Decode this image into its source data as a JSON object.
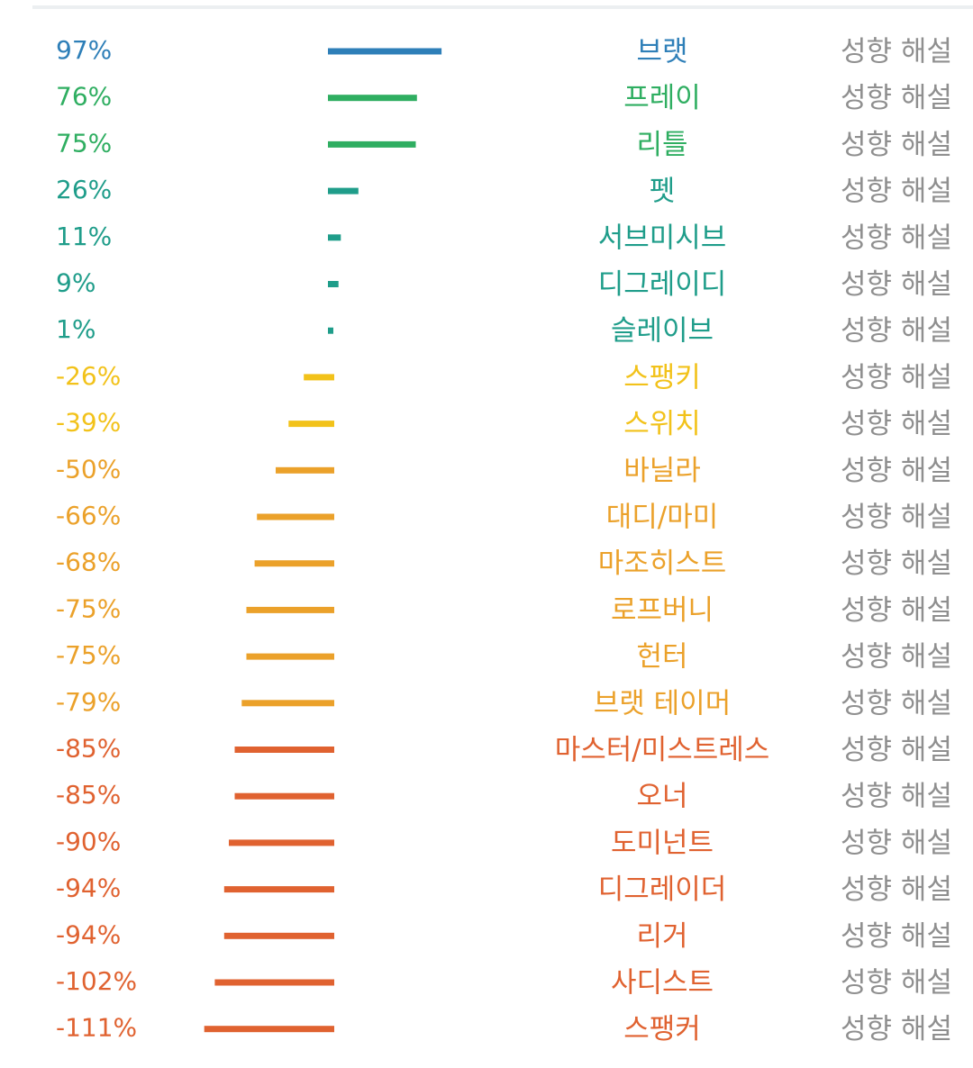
{
  "chart_data": {
    "type": "bar",
    "orientation": "horizontal",
    "categories": [
      "브랫",
      "프레이",
      "리틀",
      "펫",
      "서브미시브",
      "디그레이디",
      "슬레이브",
      "스팽키",
      "스위치",
      "바닐라",
      "대디/마미",
      "마조히스트",
      "로프버니",
      "헌터",
      "브랫 테이머",
      "마스터/미스트레스",
      "오너",
      "도미넌트",
      "디그레이더",
      "리거",
      "사디스트",
      "스팽커"
    ],
    "values": [
      97,
      76,
      75,
      26,
      11,
      9,
      1,
      -26,
      -39,
      -50,
      -66,
      -68,
      -75,
      -75,
      -79,
      -85,
      -85,
      -90,
      -94,
      -94,
      -102,
      -111
    ],
    "value_labels": [
      "97%",
      "76%",
      "75%",
      "26%",
      "11%",
      "9%",
      "1%",
      "-26%",
      "-39%",
      "-50%",
      "-66%",
      "-68%",
      "-75%",
      "-75%",
      "-79%",
      "-85%",
      "-85%",
      "-90%",
      "-94%",
      "-94%",
      "-102%",
      "-111%"
    ],
    "colors": [
      "#2e7fb8",
      "#2fae61",
      "#2fae61",
      "#1f9d8a",
      "#1f9d8a",
      "#1f9d8a",
      "#1f9d8a",
      "#f2c21a",
      "#f2c21a",
      "#eba12a",
      "#eba12a",
      "#eba12a",
      "#eba12a",
      "#eba12a",
      "#eba12a",
      "#e06230",
      "#e06230",
      "#e06230",
      "#e06230",
      "#e06230",
      "#e06230",
      "#e06230"
    ],
    "link_label": "성향 해설",
    "link_color": "#8f8f8f",
    "title": "",
    "xlabel": "",
    "ylabel": "",
    "grid": false,
    "legend": "none"
  }
}
